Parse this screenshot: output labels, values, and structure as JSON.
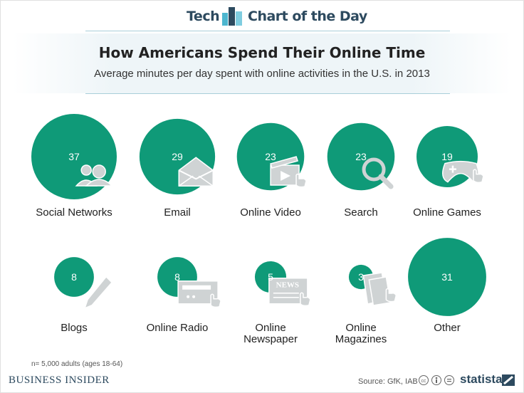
{
  "header": {
    "section": "Tech",
    "series_name": "Chart of the Day"
  },
  "chart_data": {
    "type": "bubble",
    "title": "How Americans Spend Their Online Time",
    "subtitle": "Average minutes per day spent with online activities in the U.S. in 2013",
    "categories": [
      "Social Networks",
      "Email",
      "Online Video",
      "Search",
      "Online Games",
      "Blogs",
      "Online Radio",
      "Online Newspaper",
      "Online Magazines",
      "Other"
    ],
    "values": [
      37,
      29,
      23,
      23,
      19,
      8,
      8,
      5,
      3,
      31
    ],
    "icons": [
      "people-icon",
      "envelope-icon",
      "video-clapper-icon",
      "magnifier-icon",
      "gamepad-icon",
      "pencil-icon",
      "radio-icon",
      "newspaper-icon",
      "magazines-icon",
      ""
    ],
    "unit": "minutes per day",
    "colors": {
      "bubble": "#0f9a78",
      "icon": "#cfd3d4",
      "label": "#222222"
    }
  },
  "footer": {
    "note": "n= 5,000 adults (ages 18-64)",
    "publisher": "BUSINESS INSIDER",
    "source": "Source: GfK, IAB",
    "brand": "statista"
  }
}
